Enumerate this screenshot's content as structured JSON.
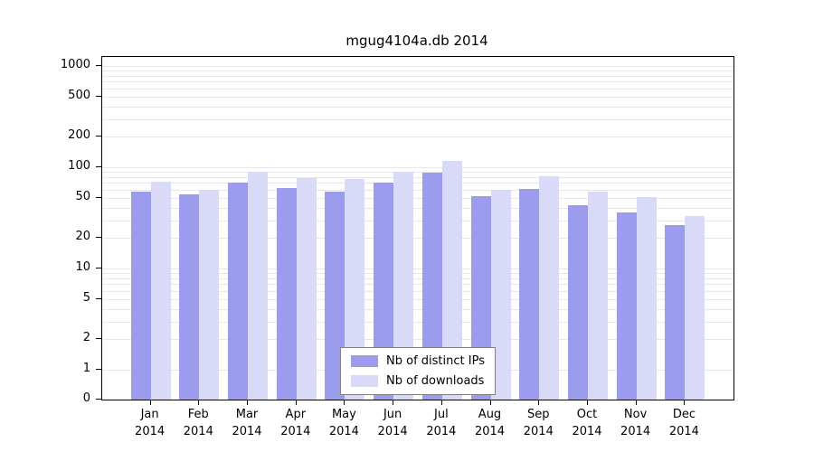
{
  "chart_data": {
    "type": "bar",
    "title": "mgug4104a.db 2014",
    "categories": [
      "Jan",
      "Feb",
      "Mar",
      "Apr",
      "May",
      "Jun",
      "Jul",
      "Aug",
      "Sep",
      "Oct",
      "Nov",
      "Dec"
    ],
    "year": "2014",
    "series": [
      {
        "name": "Nb of distinct IPs",
        "color": "#9c9cee",
        "values": [
          58,
          54,
          70,
          62,
          57,
          70,
          88,
          52,
          61,
          42,
          36,
          27
        ]
      },
      {
        "name": "Nb of downloads",
        "color": "#d9d9f8",
        "values": [
          72,
          60,
          90,
          78,
          76,
          90,
          115,
          60,
          82,
          58,
          51,
          33
        ]
      }
    ],
    "yticks": [
      0,
      1,
      2,
      5,
      10,
      20,
      50,
      100,
      200,
      500,
      1000
    ],
    "ylim": [
      0,
      1000
    ],
    "yscale": "log",
    "grid": "horizontal-minor-log",
    "legend_position": "bottom-center-inside"
  },
  "colors": {
    "background": "#ffffff",
    "frame": "#000000",
    "grid": "#e7e7e7",
    "legend_border": "#7f7f7f"
  }
}
